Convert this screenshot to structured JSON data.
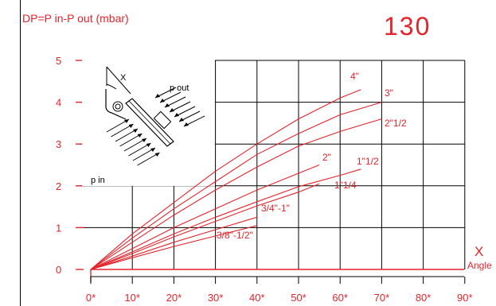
{
  "header": {
    "ylabel": "DP=P in-P out (mbar)",
    "model": "130"
  },
  "axis_x_title": {
    "symbol": "X",
    "word": "Angle"
  },
  "diagram": {
    "x_label": "X",
    "p_out_label": "p out",
    "p_in_label": "p in"
  },
  "colors": {
    "accent": "#e3242b",
    "grid": "#000000"
  },
  "chart_data": {
    "type": "line",
    "title": "",
    "xlabel": "X Angle",
    "ylabel": "DP=P in-P out (mbar)",
    "xlim": [
      0,
      90
    ],
    "ylim": [
      0,
      5
    ],
    "x_ticks": [
      0,
      10,
      20,
      30,
      40,
      50,
      60,
      70,
      80,
      90
    ],
    "x_tick_labels": [
      "0*",
      "10*",
      "20*",
      "30*",
      "40*",
      "50*",
      "60*",
      "70*",
      "80*",
      "90*"
    ],
    "y_ticks": [
      0,
      1,
      2,
      3,
      4,
      5
    ],
    "y_tick_labels": [
      "0",
      "1",
      "2",
      "3",
      "4",
      "5"
    ],
    "grid": true,
    "series": [
      {
        "name": "4\"",
        "x": [
          0,
          10,
          20,
          30,
          40,
          50,
          60,
          65
        ],
        "y": [
          0,
          0.85,
          1.6,
          2.35,
          3.0,
          3.6,
          4.1,
          4.3
        ]
      },
      {
        "name": "3\"",
        "x": [
          0,
          10,
          20,
          30,
          40,
          50,
          60,
          70
        ],
        "y": [
          0,
          0.75,
          1.45,
          2.1,
          2.75,
          3.25,
          3.7,
          4.0
        ]
      },
      {
        "name": "2\"1/2",
        "x": [
          0,
          10,
          20,
          30,
          40,
          50,
          60,
          70
        ],
        "y": [
          0,
          0.65,
          1.3,
          1.9,
          2.45,
          2.95,
          3.3,
          3.6
        ]
      },
      {
        "name": "2\"",
        "x": [
          0,
          10,
          20,
          30,
          40,
          50,
          55
        ],
        "y": [
          0,
          0.5,
          1.0,
          1.45,
          1.9,
          2.3,
          2.5
        ]
      },
      {
        "name": "1\"1/2",
        "x": [
          0,
          10,
          20,
          30,
          40,
          50,
          60,
          65
        ],
        "y": [
          0,
          0.42,
          0.85,
          1.25,
          1.62,
          1.98,
          2.25,
          2.4
        ]
      },
      {
        "name": "1\"1/4",
        "x": [
          0,
          10,
          20,
          30,
          40,
          50,
          55
        ],
        "y": [
          0,
          0.38,
          0.78,
          1.15,
          1.52,
          1.85,
          2.05
        ]
      },
      {
        "name": "3/4\"-1\"",
        "x": [
          0,
          10,
          20,
          30,
          40
        ],
        "y": [
          0,
          0.32,
          0.65,
          0.95,
          1.25
        ]
      },
      {
        "name": "3/8\"-1/2\"",
        "x": [
          0,
          10,
          20,
          30,
          40
        ],
        "y": [
          0,
          0.28,
          0.55,
          0.8,
          1.05
        ]
      }
    ]
  }
}
